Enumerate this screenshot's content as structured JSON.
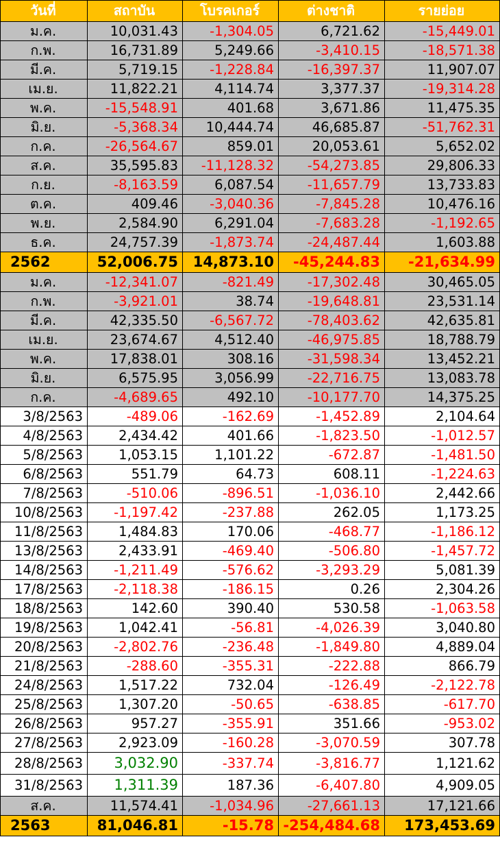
{
  "headers": [
    "วันที่",
    "สถาบัน",
    "โบรคเกอร์",
    "ต่างชาติ",
    "รายย่อย"
  ],
  "rows": [
    {
      "type": "month",
      "label": "ม.ค.",
      "values": [
        "10,031.43",
        "-1,304.05",
        "6,721.62",
        "-15,449.01"
      ]
    },
    {
      "type": "month",
      "label": "ก.พ.",
      "values": [
        "16,731.89",
        "5,249.66",
        "-3,410.15",
        "-18,571.38"
      ]
    },
    {
      "type": "month",
      "label": "มี.ค.",
      "values": [
        "5,719.15",
        "-1,228.84",
        "-16,397.37",
        "11,907.07"
      ]
    },
    {
      "type": "month",
      "label": "เม.ย.",
      "values": [
        "11,822.21",
        "4,114.74",
        "3,377.37",
        "-19,314.28"
      ]
    },
    {
      "type": "month",
      "label": "พ.ค.",
      "values": [
        "-15,548.91",
        "401.68",
        "3,671.86",
        "11,475.35"
      ]
    },
    {
      "type": "month",
      "label": "มิ.ย.",
      "values": [
        "-5,368.34",
        "10,444.74",
        "46,685.87",
        "-51,762.31"
      ]
    },
    {
      "type": "month",
      "label": "ก.ค.",
      "values": [
        "-26,564.67",
        "859.01",
        "20,053.61",
        "5,652.02"
      ]
    },
    {
      "type": "month",
      "label": "ส.ค.",
      "values": [
        "35,595.83",
        "-11,128.32",
        "-54,273.85",
        "29,806.33"
      ]
    },
    {
      "type": "month",
      "label": "ก.ย.",
      "values": [
        "-8,163.59",
        "6,087.54",
        "-11,657.79",
        "13,733.83"
      ]
    },
    {
      "type": "month",
      "label": "ต.ค.",
      "values": [
        "409.46",
        "-3,040.36",
        "-7,845.28",
        "10,476.16"
      ]
    },
    {
      "type": "month",
      "label": "พ.ย.",
      "values": [
        "2,584.90",
        "6,291.04",
        "-7,683.28",
        "-1,192.65"
      ]
    },
    {
      "type": "month",
      "label": "ธ.ค.",
      "values": [
        "24,757.39",
        "-1,873.74",
        "-24,487.44",
        "1,603.88"
      ]
    },
    {
      "type": "total",
      "label": "2562",
      "values": [
        "52,006.75",
        "14,873.10",
        "-45,244.83",
        "-21,634.99"
      ]
    },
    {
      "type": "month",
      "label": "ม.ค.",
      "values": [
        "-12,341.07",
        "-821.49",
        "-17,302.48",
        "30,465.05"
      ]
    },
    {
      "type": "month",
      "label": "ก.พ.",
      "values": [
        "-3,921.01",
        "38.74",
        "-19,648.81",
        "23,531.14"
      ]
    },
    {
      "type": "month",
      "label": "มี.ค.",
      "values": [
        "42,335.50",
        "-6,567.72",
        "-78,403.62",
        "42,635.81"
      ]
    },
    {
      "type": "month",
      "label": "เม.ย.",
      "values": [
        "23,674.67",
        "4,512.40",
        "-46,975.85",
        "18,788.79"
      ]
    },
    {
      "type": "month",
      "label": "พ.ค.",
      "values": [
        "17,838.01",
        "308.16",
        "-31,598.34",
        "13,452.21"
      ]
    },
    {
      "type": "month",
      "label": "มิ.ย.",
      "values": [
        "6,575.95",
        "3,056.99",
        "-22,716.75",
        "13,083.78"
      ]
    },
    {
      "type": "month",
      "label": "ก.ค.",
      "values": [
        "-4,689.65",
        "492.10",
        "-10,177.70",
        "14,375.25"
      ]
    },
    {
      "type": "day",
      "label": "3/8/2563",
      "values": [
        "-489.06",
        "-162.69",
        "-1,452.89",
        "2,104.64"
      ]
    },
    {
      "type": "day",
      "label": "4/8/2563",
      "values": [
        "2,434.42",
        "401.66",
        "-1,823.50",
        "-1,012.57"
      ]
    },
    {
      "type": "day",
      "label": "5/8/2563",
      "values": [
        "1,053.15",
        "1,101.22",
        "-672.87",
        "-1,481.50"
      ]
    },
    {
      "type": "day",
      "label": "6/8/2563",
      "values": [
        "551.79",
        "64.73",
        "608.11",
        "-1,224.63"
      ]
    },
    {
      "type": "day",
      "label": "7/8/2563",
      "values": [
        "-510.06",
        "-896.51",
        "-1,036.10",
        "2,442.66"
      ]
    },
    {
      "type": "day",
      "label": "10/8/2563",
      "values": [
        "-1,197.42",
        "-237.88",
        "262.05",
        "1,173.25"
      ]
    },
    {
      "type": "day",
      "label": "11/8/2563",
      "values": [
        "1,484.83",
        "170.06",
        "-468.77",
        "-1,186.12"
      ]
    },
    {
      "type": "day",
      "label": "13/8/2563",
      "values": [
        "2,433.91",
        "-469.40",
        "-506.80",
        "-1,457.72"
      ]
    },
    {
      "type": "day",
      "label": "14/8/2563",
      "values": [
        "-1,211.49",
        "-576.62",
        "-3,293.29",
        "5,081.39"
      ]
    },
    {
      "type": "day",
      "label": "17/8/2563",
      "values": [
        "-2,118.38",
        "-186.15",
        "0.26",
        "2,304.26"
      ]
    },
    {
      "type": "day",
      "label": "18/8/2563",
      "values": [
        "142.60",
        "390.40",
        "530.58",
        "-1,063.58"
      ]
    },
    {
      "type": "day",
      "label": "19/8/2563",
      "values": [
        "1,042.41",
        "-56.81",
        "-4,026.39",
        "3,040.80"
      ]
    },
    {
      "type": "day",
      "label": "20/8/2563",
      "values": [
        "-2,802.76",
        "-236.48",
        "-1,849.80",
        "4,889.04"
      ]
    },
    {
      "type": "day",
      "label": "21/8/2563",
      "values": [
        "-288.60",
        "-355.31",
        "-222.88",
        "866.79"
      ]
    },
    {
      "type": "day",
      "label": "24/8/2563",
      "values": [
        "1,517.22",
        "732.04",
        "-126.49",
        "-2,122.78"
      ]
    },
    {
      "type": "day",
      "label": "25/8/2563",
      "values": [
        "1,307.20",
        "-50.65",
        "-638.85",
        "-617.70"
      ]
    },
    {
      "type": "day",
      "label": "26/8/2563",
      "values": [
        "957.27",
        "-355.91",
        "351.66",
        "-953.02"
      ]
    },
    {
      "type": "day",
      "label": "27/8/2563",
      "values": [
        "2,923.09",
        "-160.28",
        "-3,070.59",
        "307.78"
      ]
    },
    {
      "type": "day-tall",
      "label": "28/8/2563",
      "values": [
        "3,032.90",
        "-337.74",
        "-3,816.77",
        "1,121.62"
      ],
      "green": [
        0
      ]
    },
    {
      "type": "day-tall",
      "label": "31/8/2563",
      "values": [
        "1,311.39",
        "187.36",
        "-6,407.80",
        "4,909.05"
      ],
      "green": [
        0
      ]
    },
    {
      "type": "month",
      "label": "ส.ค.",
      "values": [
        "11,574.41",
        "-1,034.96",
        "-27,661.13",
        "17,121.66"
      ]
    },
    {
      "type": "total",
      "label": "2563",
      "values": [
        "81,046.81",
        "-15.78",
        "-254,484.68",
        "173,453.69"
      ]
    }
  ],
  "colors": {
    "header_bg": "#ffc000",
    "month_bg": "#c0c0c0",
    "negative": "#ff0000",
    "highlight": "#008000"
  }
}
